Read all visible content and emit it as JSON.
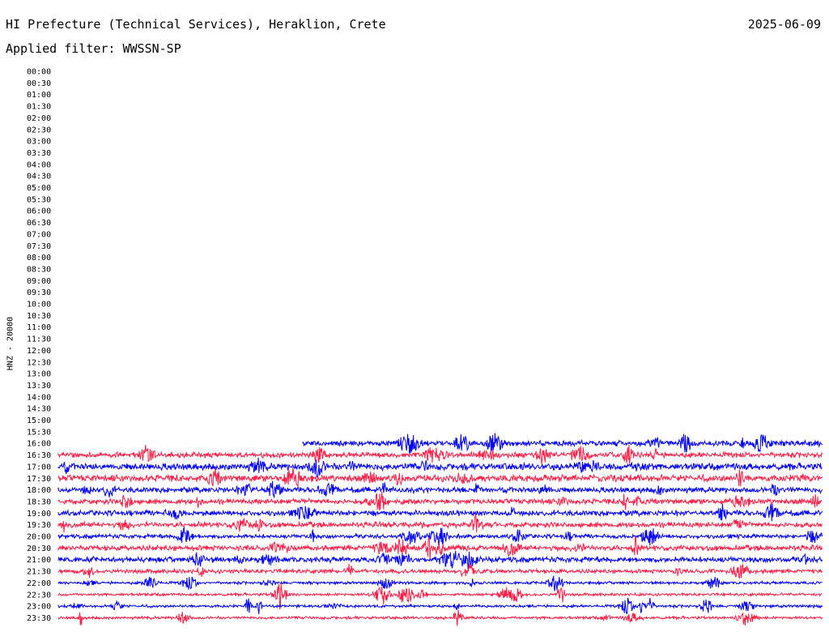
{
  "header": {
    "title": "HI Prefecture (Technical Services), Heraklion, Crete",
    "date": "2025-06-09",
    "filter": "Applied filter: WWSSN-SP"
  },
  "chart_data": {
    "type": "line",
    "title": "HI Prefecture (Technical Services), Heraklion, Crete",
    "ylabel": "HNZ - 20000",
    "row_labels": [
      "00:00",
      "00:30",
      "01:00",
      "01:30",
      "02:00",
      "02:30",
      "03:00",
      "03:30",
      "04:00",
      "04:30",
      "05:00",
      "05:30",
      "06:00",
      "06:30",
      "07:00",
      "07:30",
      "08:00",
      "08:30",
      "09:00",
      "09:30",
      "10:00",
      "10:30",
      "11:00",
      "11:30",
      "12:00",
      "12:30",
      "13:00",
      "13:30",
      "14:00",
      "14:30",
      "15:00",
      "15:30",
      "16:00",
      "16:30",
      "17:00",
      "17:30",
      "18:00",
      "18:30",
      "19:00",
      "19:30",
      "20:00",
      "20:30",
      "21:00",
      "21:30",
      "22:00",
      "22:30",
      "23:00",
      "23:30"
    ],
    "colors": {
      "odd_row": "#0000ff",
      "even_row": "#ff1e46"
    },
    "traces": [
      {
        "label": "16:00",
        "start_fraction": 0.32,
        "amplitude": 4
      },
      {
        "label": "16:30",
        "start_fraction": 0.0,
        "amplitude": 4
      },
      {
        "label": "17:00",
        "start_fraction": 0.0,
        "amplitude": 5
      },
      {
        "label": "17:30",
        "start_fraction": 0.0,
        "amplitude": 5
      },
      {
        "label": "18:00",
        "start_fraction": 0.0,
        "amplitude": 4
      },
      {
        "label": "18:30",
        "start_fraction": 0.0,
        "amplitude": 4
      },
      {
        "label": "19:00",
        "start_fraction": 0.0,
        "amplitude": 4
      },
      {
        "label": "19:30",
        "start_fraction": 0.0,
        "amplitude": 4
      },
      {
        "label": "20:00",
        "start_fraction": 0.0,
        "amplitude": 3
      },
      {
        "label": "20:30",
        "start_fraction": 0.0,
        "amplitude": 4
      },
      {
        "label": "21:00",
        "start_fraction": 0.0,
        "amplitude": 4
      },
      {
        "label": "21:30",
        "start_fraction": 0.0,
        "amplitude": 3
      },
      {
        "label": "22:00",
        "start_fraction": 0.0,
        "amplitude": 2
      },
      {
        "label": "22:30",
        "start_fraction": 0.0,
        "amplitude": 2
      },
      {
        "label": "23:00",
        "start_fraction": 0.0,
        "amplitude": 2
      },
      {
        "label": "23:30",
        "start_fraction": 0.0,
        "amplitude": 2
      }
    ]
  }
}
